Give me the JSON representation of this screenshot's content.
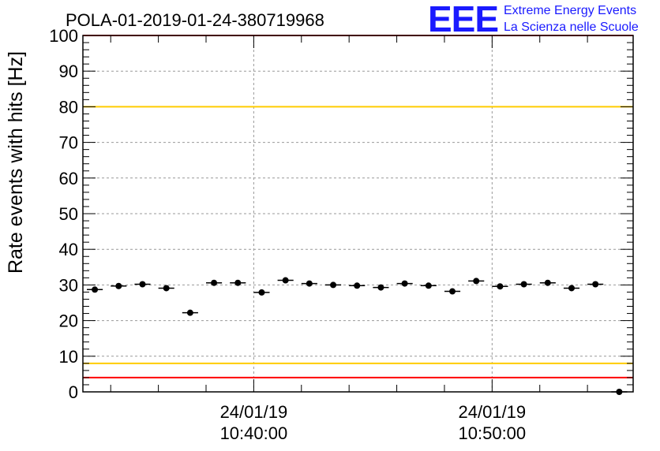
{
  "chart_data": {
    "type": "scatter",
    "title": "POLA-01-2019-01-24-380719968",
    "xlabel": "",
    "ylabel": "Rate events with hits [Hz]",
    "ylim": [
      0,
      100
    ],
    "yticks": [
      0,
      10,
      20,
      30,
      40,
      50,
      60,
      70,
      80,
      90,
      100
    ],
    "xlim": [
      "2019-01-24T10:32:50",
      "2019-01-24T10:55:55"
    ],
    "xticks": [
      {
        "date": "24/01/19",
        "time": "10:40:00",
        "x": "2019-01-24T10:40:00"
      },
      {
        "date": "24/01/19",
        "time": "10:50:00",
        "x": "2019-01-24T10:50:00"
      }
    ],
    "grid": true,
    "x_error_half_width_s": 20,
    "points": [
      {
        "x": "2019-01-24T10:33:20",
        "y": 28.7
      },
      {
        "x": "2019-01-24T10:34:20",
        "y": 29.7
      },
      {
        "x": "2019-01-24T10:35:20",
        "y": 30.2
      },
      {
        "x": "2019-01-24T10:36:20",
        "y": 29.1
      },
      {
        "x": "2019-01-24T10:37:20",
        "y": 22.2
      },
      {
        "x": "2019-01-24T10:38:20",
        "y": 30.6
      },
      {
        "x": "2019-01-24T10:39:20",
        "y": 30.6
      },
      {
        "x": "2019-01-24T10:40:20",
        "y": 27.9
      },
      {
        "x": "2019-01-24T10:41:20",
        "y": 31.3
      },
      {
        "x": "2019-01-24T10:42:20",
        "y": 30.4
      },
      {
        "x": "2019-01-24T10:43:20",
        "y": 30.0
      },
      {
        "x": "2019-01-24T10:44:20",
        "y": 29.8
      },
      {
        "x": "2019-01-24T10:45:20",
        "y": 29.3
      },
      {
        "x": "2019-01-24T10:46:20",
        "y": 30.4
      },
      {
        "x": "2019-01-24T10:47:20",
        "y": 29.8
      },
      {
        "x": "2019-01-24T10:48:20",
        "y": 28.2
      },
      {
        "x": "2019-01-24T10:49:20",
        "y": 31.1
      },
      {
        "x": "2019-01-24T10:50:20",
        "y": 29.6
      },
      {
        "x": "2019-01-24T10:51:20",
        "y": 30.2
      },
      {
        "x": "2019-01-24T10:52:20",
        "y": 30.6
      },
      {
        "x": "2019-01-24T10:53:20",
        "y": 29.1
      },
      {
        "x": "2019-01-24T10:54:20",
        "y": 30.2
      },
      {
        "x": "2019-01-24T10:55:20",
        "y": 0.0
      }
    ],
    "reference_lines": [
      {
        "y": 100,
        "color": "#ff0000"
      },
      {
        "y": 80,
        "color": "#ffcc00"
      },
      {
        "y": 8,
        "color": "#ffcc00"
      },
      {
        "y": 4,
        "color": "#ff0000"
      }
    ]
  },
  "logo": {
    "mark": "EEE",
    "line1": "Extreme Energy Events",
    "line2": "La Scienza nelle Scuole",
    "color": "#1a1aff"
  },
  "colors": {
    "marker": "#000000",
    "grid": "#999999"
  }
}
